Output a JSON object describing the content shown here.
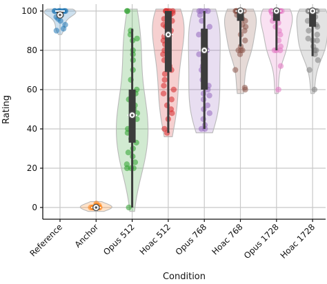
{
  "chart_data": {
    "type": "violin",
    "xlabel": "Condition",
    "ylabel": "Rating",
    "ylim": [
      0,
      100
    ],
    "yticks": [
      0,
      20,
      40,
      60,
      80,
      100
    ],
    "grid": true,
    "categories": [
      "Reference",
      "Anchor",
      "Opus 512",
      "Hoac 512",
      "Opus 768",
      "Hoac 768",
      "Opus 1728",
      "Hoac 1728"
    ],
    "series": [
      {
        "color": "#1f77b4",
        "median": 100,
        "q1": 100,
        "q3": 100,
        "whisker_low": 100,
        "whisker_high": 100,
        "mean": 98,
        "points": [
          100,
          100,
          100,
          100,
          100,
          99,
          98,
          97,
          96,
          95,
          93,
          91,
          90,
          100,
          100,
          100
        ]
      },
      {
        "color": "#ff7f0e",
        "median": 0,
        "q1": 0,
        "q3": 0,
        "whisker_low": 0,
        "whisker_high": 0,
        "mean": 0,
        "points": [
          0,
          0,
          0,
          0,
          0,
          0,
          1,
          1,
          2,
          0,
          0,
          0,
          0,
          0
        ]
      },
      {
        "color": "#2ca02c",
        "median": 47,
        "q1": 33,
        "q3": 60,
        "whisker_low": 0,
        "whisker_high": 91,
        "mean": 47,
        "points": [
          100,
          100,
          90,
          88,
          86,
          85,
          80,
          78,
          75,
          70,
          65,
          60,
          58,
          55,
          52,
          50,
          48,
          47,
          45,
          43,
          42,
          40,
          40,
          38,
          35,
          33,
          30,
          28,
          26,
          23,
          22,
          20,
          20,
          20,
          0
        ]
      },
      {
        "color": "#d62728",
        "median": 88,
        "q1": 69,
        "q3": 100,
        "whisker_low": 38,
        "whisker_high": 100,
        "mean": 88,
        "points": [
          100,
          100,
          100,
          100,
          100,
          99,
          98,
          96,
          95,
          93,
          92,
          90,
          88,
          87,
          85,
          83,
          82,
          80,
          80,
          78,
          75,
          72,
          70,
          68,
          65,
          62,
          60,
          58,
          55,
          52,
          50,
          48,
          45,
          40,
          38
        ]
      },
      {
        "color": "#9467bd",
        "median": 80,
        "q1": 60,
        "q3": 91,
        "whisker_low": 40,
        "whisker_high": 100,
        "mean": 80,
        "points": [
          100,
          100,
          100,
          100,
          98,
          95,
          92,
          90,
          88,
          85,
          82,
          80,
          80,
          78,
          75,
          72,
          70,
          68,
          65,
          62,
          60,
          58,
          57,
          55,
          52,
          50,
          48,
          45,
          42,
          40,
          40
        ]
      },
      {
        "color": "#8c564b",
        "median": 100,
        "q1": 95,
        "q3": 100,
        "whisker_low": 82,
        "whisker_high": 100,
        "mean": 100,
        "points": [
          100,
          100,
          100,
          100,
          100,
          98,
          96,
          95,
          93,
          92,
          90,
          88,
          85,
          82,
          80,
          80,
          80,
          78,
          70,
          61,
          60
        ]
      },
      {
        "color": "#e377c2",
        "median": 100,
        "q1": 95,
        "q3": 100,
        "whisker_low": 80,
        "whisker_high": 100,
        "mean": 100,
        "points": [
          100,
          100,
          100,
          100,
          100,
          99,
          97,
          95,
          94,
          92,
          90,
          88,
          85,
          82,
          80,
          80,
          80,
          72,
          60
        ]
      },
      {
        "color": "#7f7f7f",
        "median": 100,
        "q1": 92,
        "q3": 100,
        "whisker_low": 77,
        "whisker_high": 100,
        "mean": 100,
        "points": [
          100,
          100,
          100,
          100,
          100,
          99,
          97,
          95,
          93,
          92,
          90,
          88,
          86,
          85,
          85,
          82,
          80,
          80,
          78,
          75,
          70,
          60
        ]
      }
    ]
  }
}
